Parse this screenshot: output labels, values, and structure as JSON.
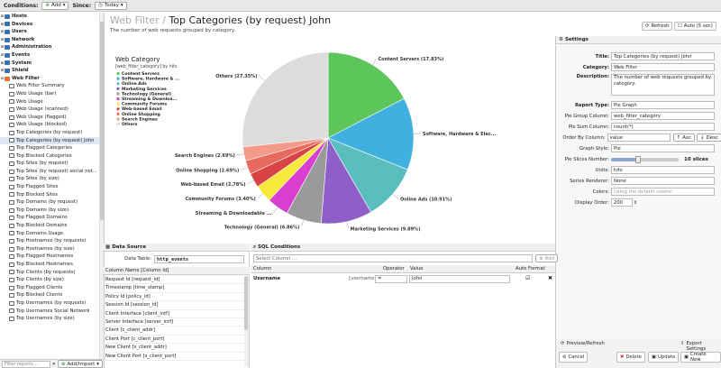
{
  "topbar": {
    "conditions_label": "Conditions:",
    "add_label": "Add",
    "since_label": "Since:",
    "since_value": "Today"
  },
  "tree": [
    {
      "label": "Hosts",
      "level": 0,
      "color": "#3b6fb6"
    },
    {
      "label": "Devices",
      "level": 0,
      "color": "#3b6fb6"
    },
    {
      "label": "Users",
      "level": 0,
      "color": "#3b6fb6"
    },
    {
      "label": "Network",
      "level": 0,
      "color": "#3b6fb6"
    },
    {
      "label": "Administration",
      "level": 0,
      "color": "#3b6fb6"
    },
    {
      "label": "Events",
      "level": 0,
      "color": "#3b6fb6"
    },
    {
      "label": "System",
      "level": 0,
      "color": "#3b6fb6"
    },
    {
      "label": "Shield",
      "level": 0,
      "color": "#3b6fb6"
    },
    {
      "label": "Web Filter",
      "level": 0,
      "color": "#e0742a",
      "open": true
    },
    {
      "label": "Web Filter Summary",
      "level": 1
    },
    {
      "label": "Web Usage (bar)",
      "level": 1
    },
    {
      "label": "Web Usage",
      "level": 1
    },
    {
      "label": "Web Usage (scanned)",
      "level": 1
    },
    {
      "label": "Web Usage (flagged)",
      "level": 1
    },
    {
      "label": "Web Usage (blocked)",
      "level": 1
    },
    {
      "label": "Top Categories (by request)",
      "level": 1
    },
    {
      "label": "Top Categories (by request) John",
      "level": 1,
      "selected": true
    },
    {
      "label": "Top Flagged Categories",
      "level": 1
    },
    {
      "label": "Top Blocked Categories",
      "level": 1
    },
    {
      "label": "Top Sites (by request)",
      "level": 1
    },
    {
      "label": "Top Sites (by request) social net...",
      "level": 1
    },
    {
      "label": "Top Sites (by size)",
      "level": 1
    },
    {
      "label": "Top Flagged Sites",
      "level": 1
    },
    {
      "label": "Top Blocked Sites",
      "level": 1
    },
    {
      "label": "Top Domains (by request)",
      "level": 1
    },
    {
      "label": "Top Domains (by size)",
      "level": 1
    },
    {
      "label": "Top Flagged Domains",
      "level": 1
    },
    {
      "label": "Top Blocked Domains",
      "level": 1
    },
    {
      "label": "Top Domains Usage",
      "level": 1
    },
    {
      "label": "Top Hostnames (by requests)",
      "level": 1
    },
    {
      "label": "Top Hostnames (by size)",
      "level": 1
    },
    {
      "label": "Top Flagged Hostnames",
      "level": 1
    },
    {
      "label": "Top Blocked Hostnames",
      "level": 1
    },
    {
      "label": "Top Clients (by requests)",
      "level": 1
    },
    {
      "label": "Top Clients (by size)",
      "level": 1
    },
    {
      "label": "Top Flagged Clients",
      "level": 1
    },
    {
      "label": "Top Blocked Clients",
      "level": 1
    },
    {
      "label": "Top Usernames (by requests)",
      "level": 1
    },
    {
      "label": "Top Usernames Social Network",
      "level": 1
    },
    {
      "label": "Top Usernames (by size)",
      "level": 1
    }
  ],
  "left_bottom": {
    "filter_placeholder": "Filter reports ...",
    "add_import": "Add/Import"
  },
  "header": {
    "section": "Web Filter",
    "separator": "/",
    "title": "Top Categories (by request) John",
    "subtitle": "The number of web requests grouped by category.",
    "refresh": "Refresh",
    "auto": "Auto (5 sec)"
  },
  "legend": {
    "title": "Web Category",
    "subtitle": "[web_filter_category] by hits"
  },
  "chart_data": {
    "type": "pie",
    "slices": [
      {
        "name": "Content Servers",
        "value": 17.83,
        "label": "Content Servers (17.83%)",
        "color": "#5cc65a"
      },
      {
        "name": "Software, Hardware & Electronics",
        "value": 14.0,
        "label": "Software, Hardware & Elec...",
        "color": "#3fb0e0"
      },
      {
        "name": "Online Ads",
        "value": 10.91,
        "label": "Online Ads (10.91%)",
        "color": "#5bbdbe"
      },
      {
        "name": "Marketing Services",
        "value": 9.89,
        "label": "Marketing Services (9.89%)",
        "color": "#8f5fc9"
      },
      {
        "name": "Technology (General)",
        "value": 6.86,
        "label": "Technology (General) (6.86%)",
        "color": "#9a9a9a"
      },
      {
        "name": "Streaming & Downloadable Video",
        "value": 4.2,
        "label": "Streaming & Downloadable ...",
        "color": "#d83ed0"
      },
      {
        "name": "Community Forums",
        "value": 3.4,
        "label": "Community Forums (3.40%)",
        "color": "#f5e93c"
      },
      {
        "name": "Web-based Email",
        "value": 2.78,
        "label": "Web-based Email (2.78%)",
        "color": "#d84345"
      },
      {
        "name": "Online Shopping",
        "value": 2.69,
        "label": "Online Shopping (2.69%)",
        "color": "#e86a5e"
      },
      {
        "name": "Search Engines",
        "value": 2.69,
        "label": "Search Engines (2.69%)",
        "color": "#f39a8a"
      },
      {
        "name": "Others",
        "value": 27.35,
        "label": "Others (27.35%)",
        "color": "#dcdcdc"
      }
    ],
    "legend_names": [
      "Content Servers",
      "Software, Hardware & ...",
      "Online Ads",
      "Marketing Services",
      "Technology (General)",
      "Streaming & Downloa...",
      "Community Forums",
      "Web-based Email",
      "Online Shopping",
      "Search Engines",
      "Others"
    ]
  },
  "datasource": {
    "title": "Data Source",
    "table_label": "Data Table:",
    "table_value": "http_events",
    "column_header": "Column Name [Column Id]",
    "rows": [
      "Request Id [request_id]",
      "Timestamp [time_stamp]",
      "Policy Id [policy_id]",
      "Session Id [session_id]",
      "Client Interface [client_intf]",
      "Server Interface [server_intf]",
      "Client [c_client_addr]",
      "Client Port [c_client_port]",
      "New Client [s_client_addr]",
      "New Client Port [s_client_port]"
    ]
  },
  "sql": {
    "title": "SQL Conditions",
    "select_placeholder": "Select Column ...",
    "add": "Add",
    "headers": {
      "column": "Column",
      "operator": "Operator",
      "value": "Value",
      "auto_format": "Auto Format"
    },
    "row": {
      "column": "Username",
      "column_id": "[username]",
      "operator": "=",
      "value": "john"
    }
  },
  "settings": {
    "title": "Settings",
    "title_label": "Title:",
    "title_value": "Top Categories (by request) John",
    "category_label": "Category:",
    "category_value": "Web Filter",
    "description_label": "Description:",
    "description_value": "The number of web requests grouped by category.",
    "report_type_label": "Report Type:",
    "report_type_value": "Pie Graph",
    "group_label": "Pie Group Column:",
    "group_value": "web_filter_category",
    "sum_label": "Pie Sum Column:",
    "sum_value": "count(*)",
    "order_label": "Order By Column:",
    "order_value": "value",
    "asc": "Asc",
    "desc": "Desc",
    "style_label": "Graph Style:",
    "style_value": "Pie",
    "slices_label": "Pie Slices Number:",
    "slices_value": "10 slices",
    "slices_fraction": 0.4,
    "units_label": "Units:",
    "units_value": "hits",
    "renderer_label": "Series Renderer:",
    "renderer_value": "None",
    "colors_label": "Colors:",
    "colors_placeholder": "Using the default colors!",
    "display_order_label": "Display Order:",
    "display_order_value": "200"
  },
  "footer": {
    "preview": "Preview/Refresh",
    "export": "Export Settings",
    "cancel": "Cancel",
    "delete": "Delete",
    "update": "Update",
    "create": "Create New"
  }
}
